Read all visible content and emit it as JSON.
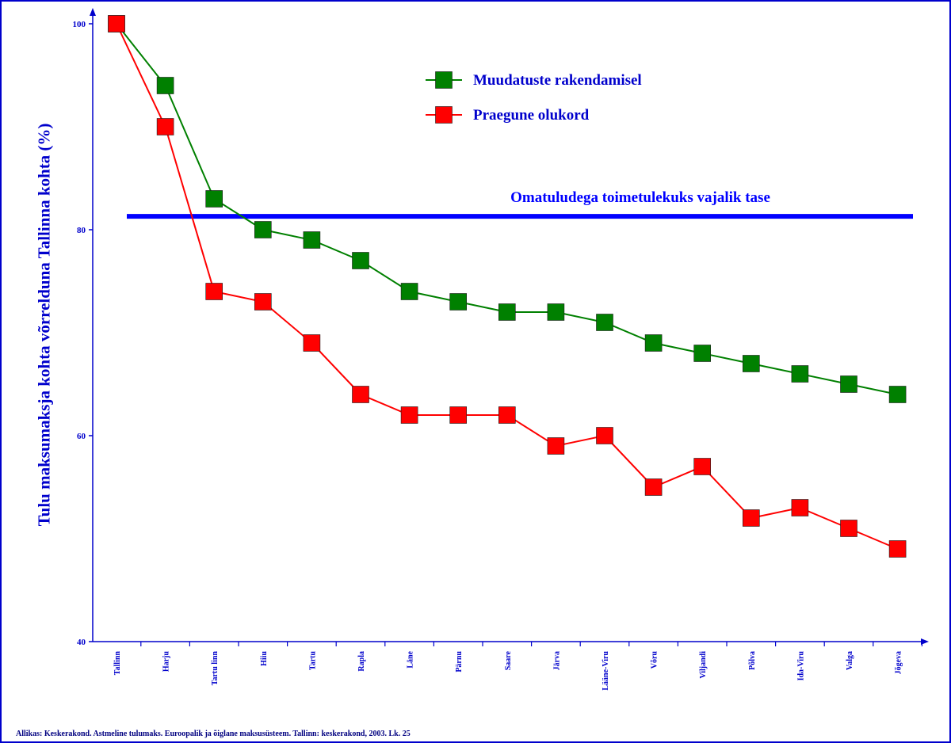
{
  "chart_data": {
    "type": "line",
    "ylabel": "Tulu maksumaksja kohta võrrelduna Tallinna kohta (%)",
    "ylim": [
      40,
      100
    ],
    "yticks": [
      40,
      60,
      80,
      100
    ],
    "categories": [
      "Tallinn",
      "Harju",
      "Tartu linn",
      "Hiiu",
      "Tartu",
      "Rapla",
      "Läne",
      "Pärnu",
      "Saare",
      "Järva",
      "Lääne-Viru",
      "Võru",
      "Viljandi",
      "Põlva",
      "Ida-Viru",
      "Valga",
      "Jõgeva"
    ],
    "series": [
      {
        "name": "Muudatuste rakendamisel",
        "color": "#008000",
        "values": [
          100,
          94,
          83,
          80,
          79,
          77,
          74,
          73,
          72,
          72,
          71,
          69,
          68,
          67,
          66,
          65,
          64
        ]
      },
      {
        "name": "Praegune olukord",
        "color": "#ff0000",
        "values": [
          100,
          90,
          74,
          73,
          69,
          64,
          62,
          62,
          62,
          59,
          60,
          55,
          57,
          52,
          53,
          51,
          49
        ]
      }
    ],
    "reference_line": {
      "label": "Omatuludega toimetulekuks vajalik tase",
      "value": 81.3,
      "color": "#0000ff"
    },
    "legend_position": "top-right"
  },
  "source_note": "Allikas: Keskerakond. Astmeline tulumaks. Euroopalik ja õiglane maksusüsteem. Tallinn: keskerakond, 2003. Lk. 25",
  "colors": {
    "axis": "#0000cc",
    "reference": "#0000ff"
  }
}
